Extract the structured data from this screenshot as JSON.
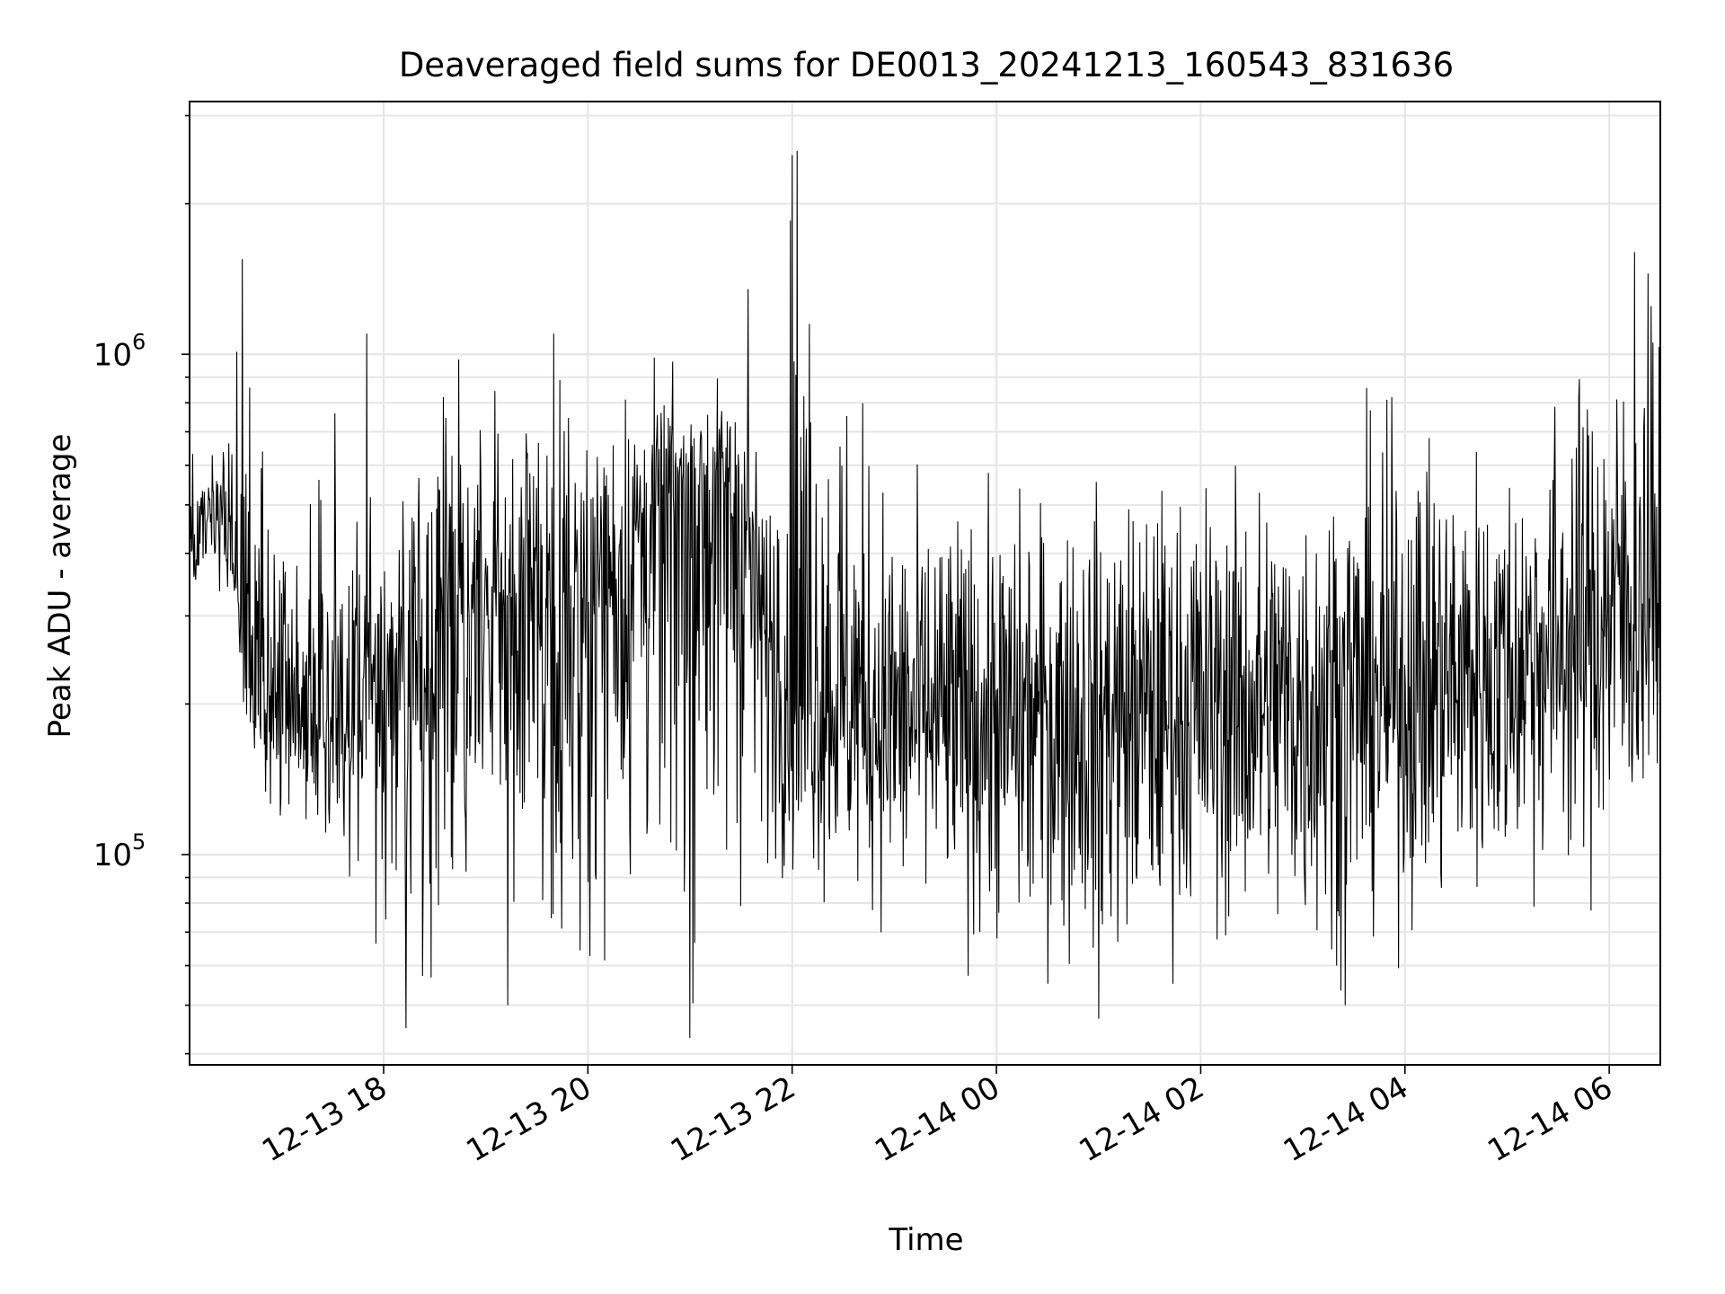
{
  "chart_data": {
    "type": "line",
    "title": "Deaveraged field sums for DE0013_20241213_160543_831636",
    "xlabel": "Time",
    "ylabel": "Peak ADU - average",
    "x_axis": {
      "type": "datetime",
      "range": [
        "2024-12-13 16:06",
        "2024-12-14 06:30"
      ],
      "ticks": [
        "2024-12-13 18:00",
        "2024-12-13 20:00",
        "2024-12-13 22:00",
        "2024-12-14 00:00",
        "2024-12-14 02:00",
        "2024-12-14 04:00",
        "2024-12-14 06:00"
      ],
      "tick_labels": [
        "12-13 18",
        "12-13 20",
        "12-13 22",
        "12-14 00",
        "12-14 02",
        "12-14 04",
        "12-14 06"
      ]
    },
    "y_axis": {
      "scale": "log",
      "range": [
        38000,
        3200000
      ],
      "ticks": [
        100000,
        1000000
      ],
      "tick_labels": [
        {
          "base": "10",
          "exp": "5"
        },
        {
          "base": "10",
          "exp": "6"
        }
      ]
    },
    "grid": true,
    "line_color": "#000000",
    "grid_color": "#e6e6e6",
    "series_envelope": [
      {
        "t": "2024-12-13 16:06",
        "median": 420000,
        "low": 300000,
        "high": 620000
      },
      {
        "t": "2024-12-13 16:30",
        "median": 450000,
        "low": 330000,
        "high": 800000
      },
      {
        "t": "2024-12-13 16:40",
        "median": 220000,
        "low": 130000,
        "high": 1500000
      },
      {
        "t": "2024-12-13 17:00",
        "median": 200000,
        "low": 90000,
        "high": 430000
      },
      {
        "t": "2024-12-13 17:30",
        "median": 190000,
        "low": 75000,
        "high": 1100000
      },
      {
        "t": "2024-12-13 18:00",
        "median": 230000,
        "low": 65000,
        "high": 550000
      },
      {
        "t": "2024-12-13 18:30",
        "median": 270000,
        "low": 55000,
        "high": 1000000
      },
      {
        "t": "2024-12-13 19:00",
        "median": 300000,
        "low": 60000,
        "high": 950000
      },
      {
        "t": "2024-12-13 19:30",
        "median": 310000,
        "low": 55000,
        "high": 1000000
      },
      {
        "t": "2024-12-13 20:00",
        "median": 330000,
        "low": 58000,
        "high": 800000
      },
      {
        "t": "2024-12-13 20:30",
        "median": 450000,
        "low": 60000,
        "high": 1000000
      },
      {
        "t": "2024-12-13 21:00",
        "median": 550000,
        "low": 50000,
        "high": 950000
      },
      {
        "t": "2024-12-13 21:30",
        "median": 520000,
        "low": 58000,
        "high": 1000000
      },
      {
        "t": "2024-12-13 21:45",
        "median": 260000,
        "low": 85000,
        "high": 600000
      },
      {
        "t": "2024-12-13 22:00",
        "median": 210000,
        "low": 78000,
        "high": 2500000
      },
      {
        "t": "2024-12-13 23:00",
        "median": 190000,
        "low": 60000,
        "high": 600000
      },
      {
        "t": "2024-12-14 00:00",
        "median": 185000,
        "low": 55000,
        "high": 610000
      },
      {
        "t": "2024-12-14 01:00",
        "median": 190000,
        "low": 47000,
        "high": 640000
      },
      {
        "t": "2024-12-14 02:00",
        "median": 195000,
        "low": 58000,
        "high": 700000
      },
      {
        "t": "2024-12-14 03:00",
        "median": 200000,
        "low": 50000,
        "high": 720000
      },
      {
        "t": "2024-12-14 04:00",
        "median": 210000,
        "low": 60000,
        "high": 950000
      },
      {
        "t": "2024-12-14 05:00",
        "median": 230000,
        "low": 70000,
        "high": 780000
      },
      {
        "t": "2024-12-14 05:30",
        "median": 260000,
        "low": 75000,
        "high": 1050000
      },
      {
        "t": "2024-12-14 06:00",
        "median": 320000,
        "low": 60000,
        "high": 1200000
      },
      {
        "t": "2024-12-14 06:30",
        "median": 340000,
        "low": 100000,
        "high": 1500000
      }
    ],
    "spikes": [
      {
        "t": "2024-12-13 16:37",
        "value": 1550000
      },
      {
        "t": "2024-12-13 17:50",
        "value": 1100000
      },
      {
        "t": "2024-12-13 19:40",
        "value": 1100000
      },
      {
        "t": "2024-12-13 21:34",
        "value": 1350000
      },
      {
        "t": "2024-12-13 22:00",
        "value": 2500000
      },
      {
        "t": "2024-12-13 22:03",
        "value": 2550000
      },
      {
        "t": "2024-12-13 22:10",
        "value": 1150000
      },
      {
        "t": "2024-12-14 06:15",
        "value": 1600000
      },
      {
        "t": "2024-12-14 06:23",
        "value": 1450000
      },
      {
        "t": "2024-12-13 18:13",
        "value": 45000
      },
      {
        "t": "2024-12-13 21:00",
        "value": 43000
      },
      {
        "t": "2024-12-14 01:00",
        "value": 47000
      },
      {
        "t": "2024-12-14 03:25",
        "value": 50000
      },
      {
        "t": "2024-12-13 19:13",
        "value": 50000
      }
    ],
    "approx_point_count": 2400
  }
}
